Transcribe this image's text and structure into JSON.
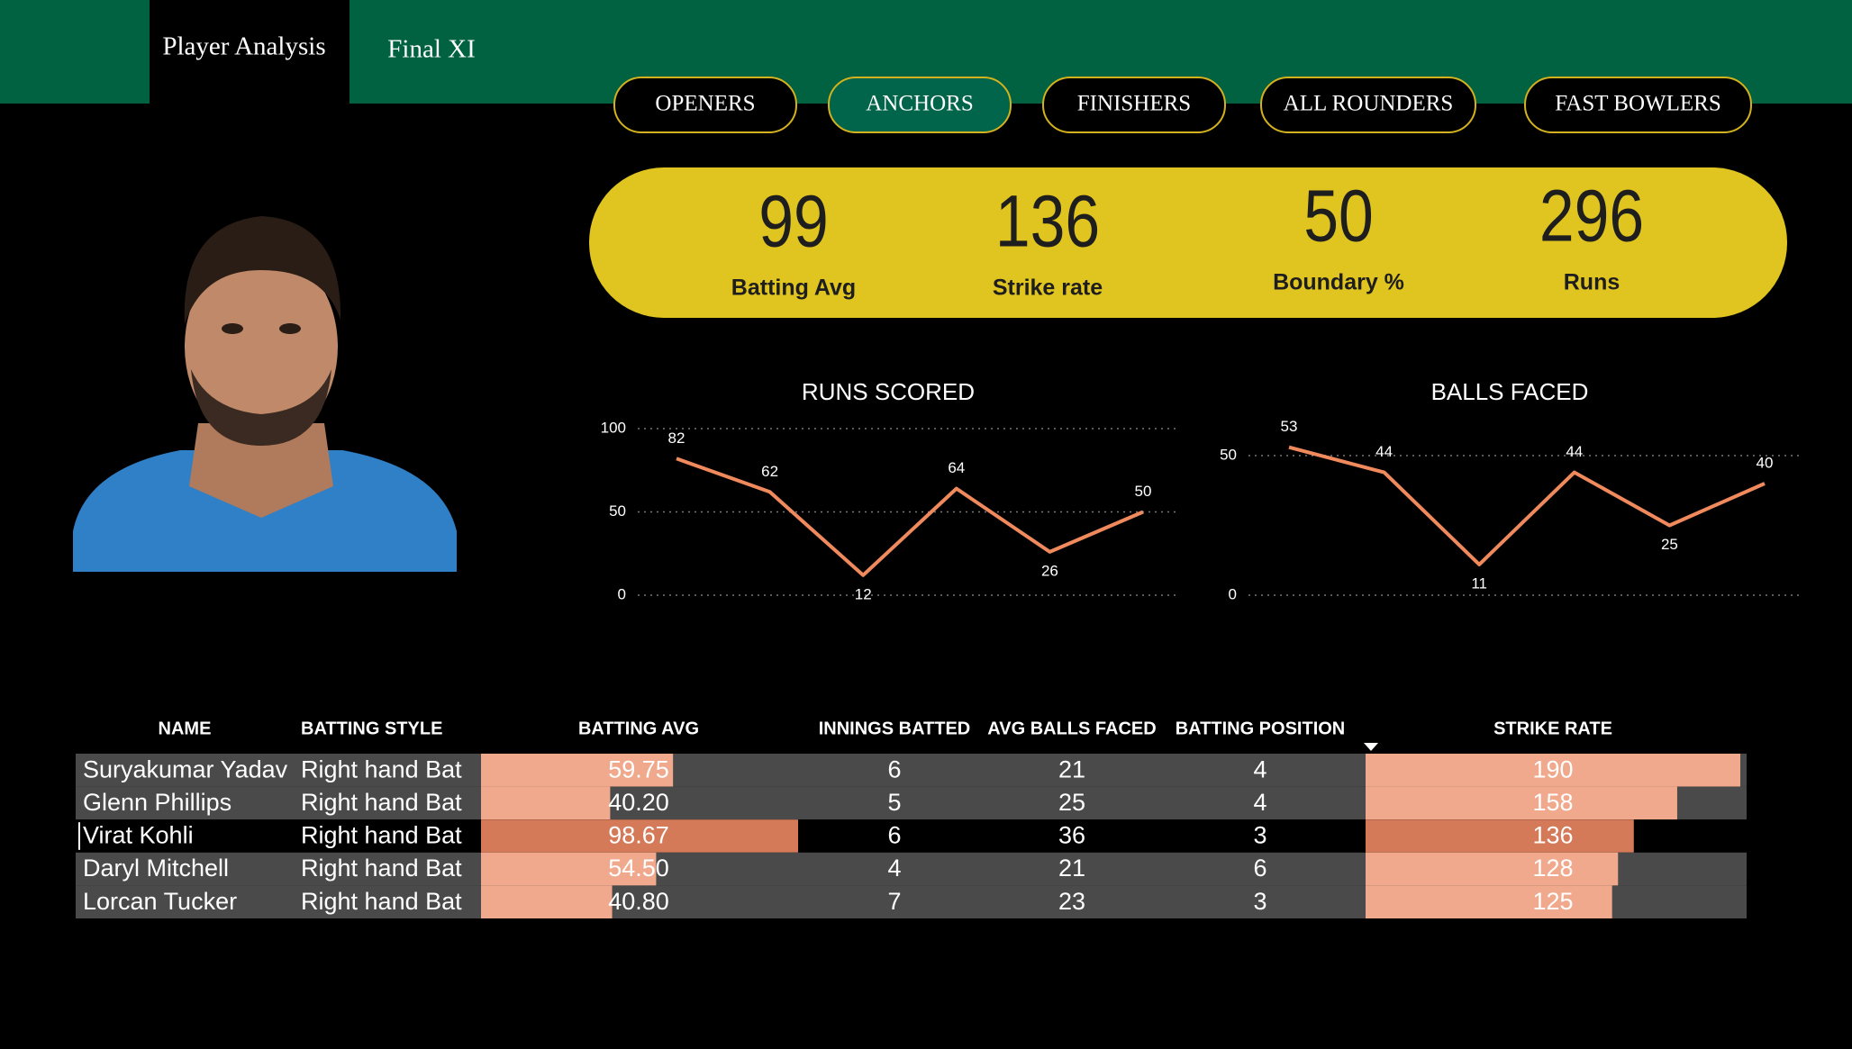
{
  "nav": {
    "tabs": [
      "Player Analysis",
      "Final XI"
    ]
  },
  "filters": {
    "items": [
      "OPENERS",
      "ANCHORS",
      "FINISHERS",
      "ALL ROUNDERS",
      "FAST BOWLERS"
    ],
    "selected": 1
  },
  "kpis": [
    {
      "value": 99,
      "label": "Batting Avg"
    },
    {
      "value": 136,
      "label": "Strike rate"
    },
    {
      "value": 50,
      "label": "Boundary %"
    },
    {
      "value": 296,
      "label": "Runs"
    }
  ],
  "chart_data": [
    {
      "type": "line",
      "title": "RUNS SCORED",
      "categories": [
        null,
        null,
        null,
        null,
        null,
        null
      ],
      "values": [
        82,
        62,
        12,
        64,
        26,
        50
      ],
      "color": "#f08a5d",
      "ylim": [
        0,
        100
      ],
      "yticks": [
        0,
        50,
        100
      ],
      "grid": true
    },
    {
      "type": "line",
      "title": "BALLS FACED",
      "categories": [
        null,
        null,
        null,
        null,
        null,
        null
      ],
      "values": [
        53,
        44,
        11,
        44,
        25,
        40
      ],
      "color": "#f08a5d",
      "ylim": [
        0,
        55
      ],
      "yticks": [
        0,
        50
      ],
      "grid": true
    }
  ],
  "table": {
    "headers": [
      "NAME",
      "BATTING STYLE",
      "BATTING AVG",
      "INNINGS BATTED",
      "AVG BALLS FACED",
      "BATTING POSITION",
      "STRIKE RATE"
    ],
    "rows": [
      [
        "Suryakumar Yadav",
        "Right hand Bat",
        59.75,
        6,
        21,
        4,
        190
      ],
      [
        "Glenn Phillips",
        "Right hand Bat",
        {
          "value": 40.2,
          "label": "40.20"
        },
        5,
        25,
        4,
        158
      ],
      [
        "Virat Kohli",
        "Right hand Bat",
        98.67,
        6,
        36,
        3,
        136
      ],
      [
        "Daryl Mitchell",
        "Right hand Bat",
        {
          "value": 54.5,
          "label": "54.50"
        },
        4,
        21,
        6,
        128
      ],
      [
        "Lorcan Tucker",
        "Right hand Bat",
        {
          "value": 40.8,
          "label": "40.80"
        },
        7,
        23,
        3,
        125
      ]
    ],
    "selected_row": 2,
    "bar_color": "#f0a98c",
    "selected_bar_color": "#d47a59"
  }
}
